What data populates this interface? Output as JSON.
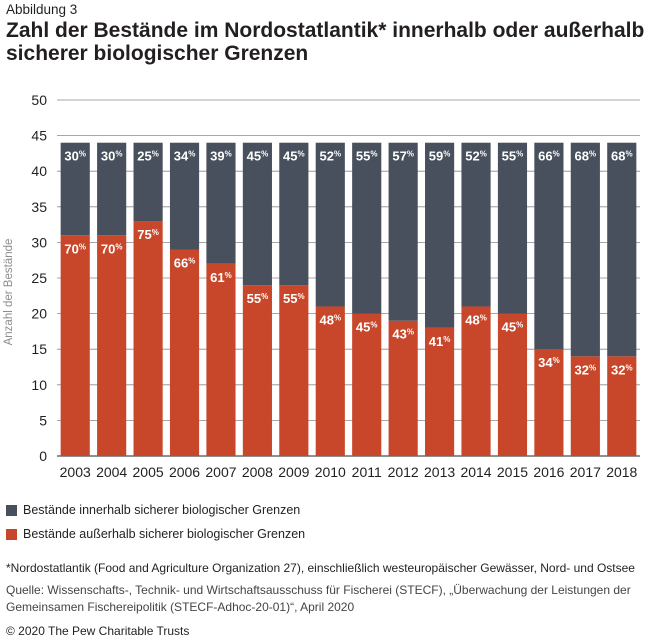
{
  "figure_label": "Abbildung 3",
  "title": "Zahl der Bestände im Nordostatlantik* innerhalb oder außerhalb sicherer biologischer Grenzen",
  "chart_data": {
    "type": "bar",
    "stacked": true,
    "title": "Zahl der Bestände im Nordostatlantik* innerhalb oder außerhalb sicherer biologischer Grenzen",
    "xlabel": "",
    "ylabel": "Anzahl der Bestände",
    "ylim": [
      0,
      50
    ],
    "yticks": [
      0,
      5,
      10,
      15,
      20,
      25,
      30,
      35,
      40,
      45,
      50
    ],
    "grid": true,
    "legend_position": "bottom-left",
    "categories": [
      "2003",
      "2004",
      "2005",
      "2006",
      "2007",
      "2008",
      "2009",
      "2010",
      "2011",
      "2012",
      "2013",
      "2014",
      "2015",
      "2016",
      "2017",
      "2018"
    ],
    "series": [
      {
        "name": "Bestände außerhalb sicherer biologischer Grenzen",
        "color": "#c8472a",
        "values": [
          31,
          31,
          33,
          29,
          27,
          24,
          24,
          21,
          20,
          19,
          18,
          21,
          20,
          15,
          14,
          14
        ],
        "labels": [
          "70%",
          "70%",
          "75%",
          "66%",
          "61%",
          "55%",
          "55%",
          "48%",
          "45%",
          "43%",
          "41%",
          "48%",
          "45%",
          "34%",
          "32%",
          "32%"
        ]
      },
      {
        "name": "Bestände innerhalb sicherer biologischer Grenzen",
        "color": "#47505c",
        "values": [
          13,
          13,
          11,
          15,
          17,
          20,
          20,
          23,
          24,
          25,
          26,
          23,
          24,
          29,
          30,
          30
        ],
        "labels": [
          "30%",
          "30%",
          "25%",
          "34%",
          "39%",
          "45%",
          "45%",
          "52%",
          "55%",
          "57%",
          "59%",
          "52%",
          "55%",
          "66%",
          "68%",
          "68%"
        ]
      }
    ]
  },
  "legend": [
    {
      "label": "Bestände innerhalb sicherer biologischer Grenzen",
      "color": "#47505c"
    },
    {
      "label": "Bestände außerhalb sicherer biologischer Grenzen",
      "color": "#c8472a"
    }
  ],
  "footnote": "*Nordostatlantik (Food and Agriculture Organization 27), einschließlich westeuropäischer Gewässer, Nord- und Ostsee",
  "source": "Quelle: Wissenschafts-, Technik- und Wirtschaftsausschuss für Fischerei (STECF), „Überwachung der Leistungen der Gemeinsamen Fischereipolitik (STECF-Adhoc-20-01)“, April 2020",
  "copyright": "© 2020 The Pew Charitable Trusts"
}
